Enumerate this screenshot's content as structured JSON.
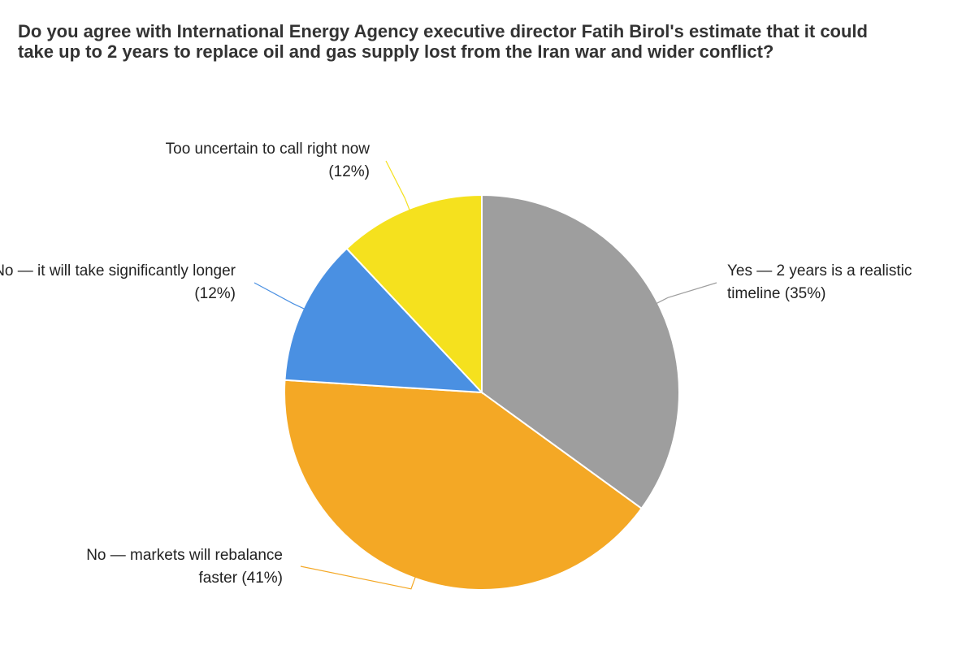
{
  "chart_data": {
    "type": "pie",
    "title": "Do you agree with International Energy Agency executive director Fatih Birol's estimate that it could take up to 2 years to replace oil and gas supply lost from the Iran war and wider conflict?",
    "categories": [
      "Yes — 2 years is a realistic timeline",
      "No — markets will rebalance faster",
      "No — it will take significantly longer",
      "Too uncertain to call right now"
    ],
    "values": [
      35,
      41,
      12,
      12
    ],
    "value_labels": [
      "(35%)",
      "(41%)",
      "(12%)",
      "(12%)"
    ],
    "colors": [
      "#9e9e9e",
      "#f4a825",
      "#4a90e2",
      "#f5e11e"
    ]
  }
}
